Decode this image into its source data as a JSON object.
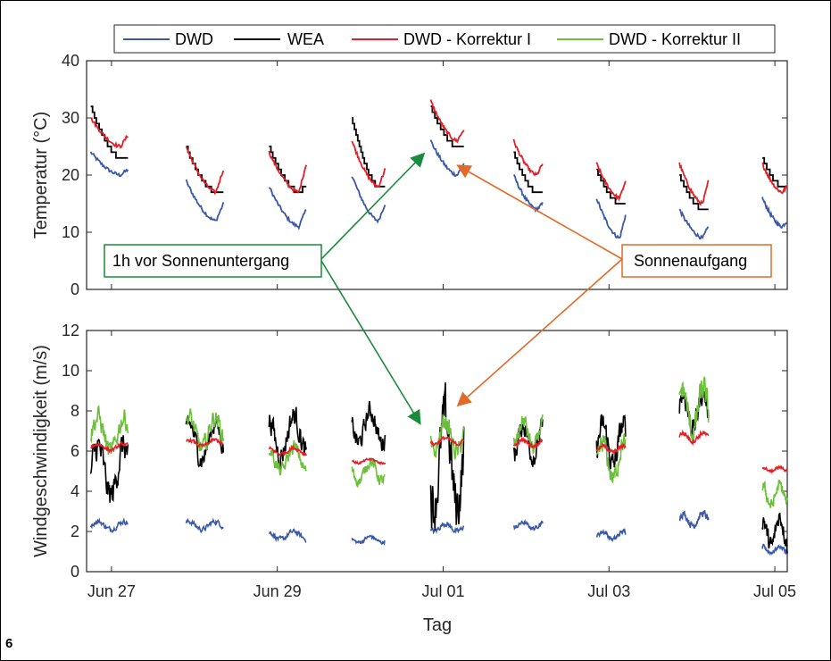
{
  "figure_number": "6",
  "colors": {
    "DWD": "#3a58a8",
    "WEA": "#000000",
    "DWD - Korrektur I": "#e41e26",
    "DWD - Korrektur II": "#6cbf3a",
    "annotation_sunset": "#1a8a3c",
    "annotation_sunrise": "#e06a28"
  },
  "legend": [
    "DWD",
    "WEA",
    "DWD - Korrektur I",
    "DWD - Korrektur II"
  ],
  "annotations": {
    "sunset": "1h vor Sonnenuntergang",
    "sunrise": "Sonnenaufgang"
  },
  "chart_data": [
    {
      "type": "line",
      "ylabel": "Temperatur (°C)",
      "ylim": [
        0,
        40
      ],
      "yticks": [
        "0",
        "10",
        "20",
        "30",
        "40"
      ],
      "xlim_days": [
        26.7,
        35.15
      ],
      "x_unit": "Tag (Juni/Juli, day 31 = Jul 01)",
      "segments_start_day": [
        26.75,
        27.9,
        28.9,
        29.9,
        30.85,
        31.85,
        32.85,
        33.85,
        34.85
      ],
      "segments_end_day": [
        27.2,
        28.35,
        29.35,
        30.3,
        31.25,
        32.2,
        33.2,
        34.2,
        35.15
      ],
      "series": [
        {
          "name": "DWD",
          "start": [
            24,
            19,
            18,
            20,
            26,
            20,
            16,
            14,
            16
          ],
          "end": [
            21,
            15,
            14,
            15,
            22,
            15,
            13,
            11,
            12
          ],
          "min": [
            20,
            12,
            11,
            12,
            20,
            14,
            9,
            9,
            11
          ]
        },
        {
          "name": "WEA",
          "start": [
            32,
            25,
            25,
            30,
            32,
            24,
            21,
            20,
            23
          ],
          "end": [
            23,
            17,
            18,
            18,
            25,
            17,
            15,
            14,
            18
          ],
          "min": [
            23,
            17,
            17,
            18,
            25,
            17,
            15,
            14,
            18
          ]
        },
        {
          "name": "DWD - Korrektur I",
          "start": [
            30,
            25,
            24,
            26,
            33,
            26,
            22,
            22,
            22
          ],
          "end": [
            27,
            21,
            22,
            21,
            28,
            22,
            19,
            19,
            18
          ],
          "min": [
            25,
            17,
            17,
            18,
            26,
            20,
            16,
            15,
            17
          ]
        }
      ]
    },
    {
      "type": "line",
      "ylabel": "Windgeschwindigkeit (m/s)",
      "xlabel": "Tag",
      "ylim": [
        0,
        12
      ],
      "yticks": [
        "0",
        "2",
        "4",
        "6",
        "8",
        "10",
        "12"
      ],
      "xticks": [
        "Jun 27",
        "Jun 29",
        "Jul 01",
        "Jul 03",
        "Jul 05"
      ],
      "xticks_day": [
        27,
        29,
        31,
        33,
        35
      ],
      "xlim_days": [
        26.7,
        35.15
      ],
      "segments_start_day": [
        26.75,
        27.9,
        28.9,
        29.9,
        30.85,
        31.85,
        32.85,
        33.85,
        34.85
      ],
      "segments_end_day": [
        27.2,
        28.35,
        29.35,
        30.3,
        31.25,
        32.2,
        33.2,
        34.2,
        35.15
      ],
      "series": [
        {
          "name": "DWD",
          "mean": [
            2.3,
            2.3,
            1.8,
            1.6,
            2.2,
            2.3,
            1.8,
            2.6,
            1.1
          ],
          "amp": [
            0.4,
            0.4,
            0.4,
            0.3,
            0.4,
            0.3,
            0.4,
            0.6,
            0.3
          ]
        },
        {
          "name": "WEA",
          "mean": [
            5.0,
            6.5,
            6.8,
            7.2,
            5.5,
            6.5,
            6.3,
            8.0,
            2.0
          ],
          "amp": [
            2.5,
            1.8,
            2.0,
            1.6,
            4.5,
            1.6,
            2.0,
            1.8,
            1.5
          ]
        },
        {
          "name": "DWD - Korrektur I",
          "mean": [
            6.2,
            6.4,
            6.0,
            5.5,
            6.5,
            6.4,
            6.1,
            6.7,
            5.1
          ],
          "amp": [
            0.3,
            0.3,
            0.3,
            0.2,
            0.3,
            0.3,
            0.3,
            0.4,
            0.2
          ]
        },
        {
          "name": "DWD - Korrektur II",
          "mean": [
            6.8,
            6.9,
            5.6,
            5.0,
            6.7,
            6.8,
            5.5,
            8.0,
            3.8
          ],
          "amp": [
            1.8,
            1.6,
            1.2,
            1.0,
            1.6,
            1.4,
            1.8,
            2.2,
            1.0
          ]
        }
      ]
    }
  ]
}
